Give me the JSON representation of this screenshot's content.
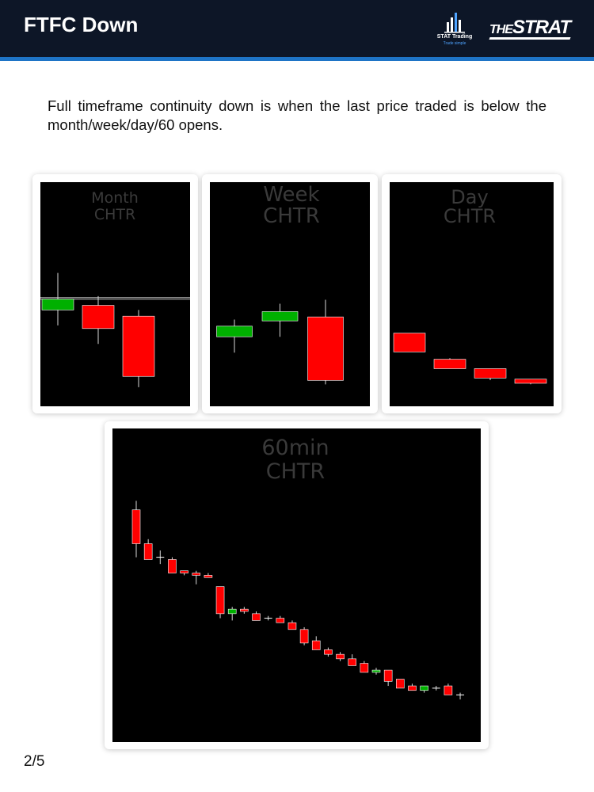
{
  "header": {
    "title": "FTFC Down",
    "logo_primary": {
      "name": "STAT Trading",
      "tagline": "Trade simple"
    },
    "logo_secondary": {
      "text_small": "THE",
      "text_large": "STRAT"
    },
    "background": "#0d1627",
    "accent": "#1e74c6"
  },
  "description": "Full timeframe continuity down is when the last price traded is below the month/week/day/60 opens.",
  "page_number": "2/5",
  "colors": {
    "up": "#00b000",
    "down": "#ff0000",
    "chart_bg": "#000000",
    "watermark": "#3a3a3a"
  },
  "chart_data": [
    {
      "type": "candlestick",
      "watermark": [
        "Month",
        "CHTR"
      ],
      "ylim": [
        0,
        100
      ],
      "open_levels": [
        55,
        56
      ],
      "candles": [
        {
          "o": 48,
          "h": 72,
          "l": 38,
          "c": 55
        },
        {
          "o": 51,
          "h": 57,
          "l": 26,
          "c": 36
        },
        {
          "o": 44,
          "h": 48,
          "l": -2,
          "c": 5
        }
      ]
    },
    {
      "type": "candlestick",
      "watermark": [
        "Week",
        "CHTR"
      ],
      "ylim": [
        0,
        100
      ],
      "candles": [
        {
          "o": 40,
          "h": 53,
          "l": 28,
          "c": 48
        },
        {
          "o": 52,
          "h": 65,
          "l": 40,
          "c": 59
        },
        {
          "o": 55,
          "h": 68,
          "l": 4,
          "c": 7
        }
      ]
    },
    {
      "type": "candlestick",
      "watermark": [
        "Day",
        "CHTR"
      ],
      "ylim": [
        0,
        100
      ],
      "candles": [
        {
          "o": 45,
          "h": 45,
          "l": 27,
          "c": 27
        },
        {
          "o": 20,
          "h": 21,
          "l": 11,
          "c": 11
        },
        {
          "o": 11,
          "h": 11,
          "l": 0,
          "c": 2
        },
        {
          "o": 1,
          "h": 1,
          "l": -4,
          "c": -3
        }
      ]
    },
    {
      "type": "candlestick",
      "watermark": [
        "60min",
        "CHTR"
      ],
      "ylim": [
        0,
        100
      ],
      "candles": [
        {
          "o": 85,
          "h": 89,
          "l": 64,
          "c": 70
        },
        {
          "o": 70,
          "h": 72,
          "l": 64,
          "c": 63
        },
        {
          "o": 64,
          "h": 67,
          "l": 61,
          "c": 64
        },
        {
          "o": 63,
          "h": 64,
          "l": 57,
          "c": 57
        },
        {
          "o": 58,
          "h": 58,
          "l": 56,
          "c": 57
        },
        {
          "o": 57,
          "h": 58,
          "l": 52,
          "c": 56
        },
        {
          "o": 56,
          "h": 57,
          "l": 55,
          "c": 55
        },
        {
          "o": 51,
          "h": 51,
          "l": 37,
          "c": 39
        },
        {
          "o": 39,
          "h": 42,
          "l": 36,
          "c": 41
        },
        {
          "o": 41,
          "h": 42,
          "l": 39,
          "c": 40
        },
        {
          "o": 39,
          "h": 40,
          "l": 36,
          "c": 36
        },
        {
          "o": 37,
          "h": 38,
          "l": 36,
          "c": 37
        },
        {
          "o": 37,
          "h": 38,
          "l": 35,
          "c": 35
        },
        {
          "o": 35,
          "h": 36,
          "l": 32,
          "c": 32
        },
        {
          "o": 32,
          "h": 33,
          "l": 25,
          "c": 26
        },
        {
          "o": 27,
          "h": 29,
          "l": 23,
          "c": 23
        },
        {
          "o": 23,
          "h": 24,
          "l": 20,
          "c": 21
        },
        {
          "o": 21,
          "h": 22,
          "l": 18,
          "c": 19
        },
        {
          "o": 19,
          "h": 21,
          "l": 16,
          "c": 16
        },
        {
          "o": 17,
          "h": 18,
          "l": 13,
          "c": 13
        },
        {
          "o": 13,
          "h": 15,
          "l": 12,
          "c": 14
        },
        {
          "o": 14,
          "h": 14,
          "l": 7,
          "c": 9
        },
        {
          "o": 10,
          "h": 10,
          "l": 6,
          "c": 6
        },
        {
          "o": 7,
          "h": 8,
          "l": 5,
          "c": 5
        },
        {
          "o": 5,
          "h": 7,
          "l": 4,
          "c": 7
        },
        {
          "o": 6,
          "h": 7,
          "l": 5,
          "c": 6
        },
        {
          "o": 7,
          "h": 8,
          "l": 3,
          "c": 3
        },
        {
          "o": 3,
          "h": 4,
          "l": 1,
          "c": 3
        }
      ]
    }
  ]
}
